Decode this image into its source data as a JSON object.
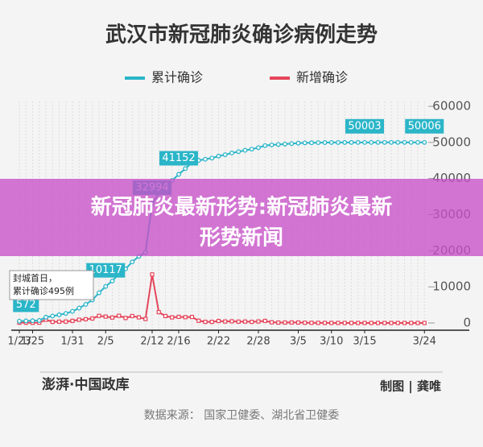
{
  "chart_data": {
    "type": "line",
    "title": "武汉市新冠肺炎确诊病例走势",
    "categories": [
      "1/23",
      null,
      "1/25",
      null,
      null,
      null,
      null,
      null,
      "1/31",
      null,
      null,
      null,
      null,
      "2/5",
      null,
      null,
      null,
      null,
      null,
      null,
      "2/12",
      null,
      null,
      null,
      "2/16",
      null,
      null,
      null,
      null,
      null,
      "2/22",
      null,
      null,
      null,
      null,
      null,
      "2/28",
      null,
      null,
      null,
      null,
      null,
      "3/5",
      null,
      null,
      null,
      null,
      "3/10",
      null,
      null,
      null,
      null,
      "3/15",
      null,
      null,
      null,
      null,
      null,
      null,
      null,
      null,
      "3/24"
    ],
    "series": [
      {
        "name": "累计确诊",
        "color": "#2bb5c8",
        "values": [
          495,
          572,
          618,
          698,
          1590,
          1905,
          2261,
          2639,
          3215,
          4109,
          5142,
          6384,
          8351,
          10117,
          11618,
          13603,
          14982,
          16902,
          18454,
          19558,
          32994,
          35991,
          37914,
          39462,
          41152,
          42752,
          44412,
          45027,
          45346,
          45660,
          46201,
          46607,
          47071,
          47441,
          47824,
          48137,
          48557,
          49122,
          49315,
          49426,
          49540,
          49671,
          49797,
          49871,
          49912,
          49948,
          49965,
          49978,
          49986,
          49991,
          49995,
          49999,
          50003,
          50004,
          50005,
          50005,
          50005,
          50005,
          50005,
          50005,
          50006,
          50006
        ],
        "value_labels": [
          null,
          "572",
          null,
          null,
          null,
          null,
          null,
          null,
          null,
          null,
          null,
          null,
          null,
          "10117",
          null,
          null,
          null,
          null,
          null,
          null,
          "32994",
          null,
          null,
          null,
          "41152",
          null,
          null,
          null,
          null,
          null,
          null,
          null,
          null,
          null,
          null,
          null,
          null,
          null,
          null,
          null,
          null,
          null,
          null,
          null,
          null,
          null,
          null,
          null,
          null,
          null,
          null,
          null,
          "50003",
          null,
          null,
          null,
          null,
          null,
          null,
          null,
          null,
          "50006"
        ]
      },
      {
        "name": "新增确诊",
        "color": "#e5455a",
        "values": [
          70,
          77,
          46,
          80,
          892,
          315,
          356,
          378,
          576,
          894,
          1033,
          1242,
          1967,
          1766,
          1501,
          1985,
          1379,
          1920,
          1552,
          1104,
          13436,
          2997,
          1923,
          1548,
          1690,
          1600,
          1660,
          615,
          319,
          314,
          541,
          406,
          464,
          370,
          383,
          313,
          420,
          565,
          193,
          111,
          114,
          131,
          126,
          74,
          41,
          36,
          17,
          13,
          8,
          5,
          4,
          4,
          4,
          1,
          1,
          0,
          0,
          0,
          0,
          0,
          1,
          0
        ]
      }
    ],
    "ylim": [
      0,
      60000
    ],
    "yticks": [
      0,
      10000,
      20000,
      30000,
      40000,
      50000,
      60000
    ],
    "annotation": [
      "封城首日，",
      "累计确诊495例"
    ],
    "banner": [
      "新冠肺炎最新形势:新冠肺炎最新",
      "形势新闻"
    ],
    "publisher": "澎湃·中国政库",
    "credit": "制图 | 龚唯",
    "source": "数据来源： 国家卫健委、湖北省卫健委"
  }
}
